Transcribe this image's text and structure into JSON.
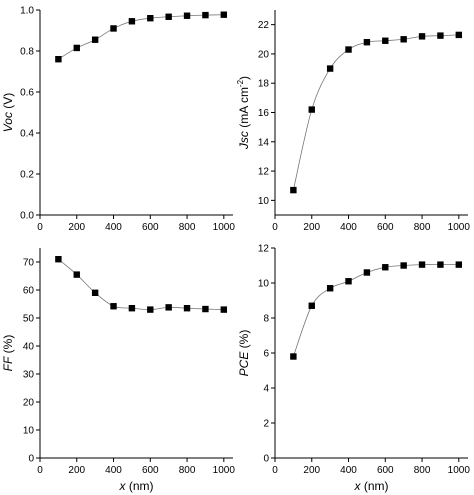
{
  "chart_data": [
    {
      "type": "scatter",
      "title": "",
      "xlabel": "",
      "ylabel": {
        "italic": "Voc",
        "plain": " (V)"
      },
      "xlim": [
        0,
        1050
      ],
      "ylim": [
        0.0,
        1.0
      ],
      "xticks": [
        0,
        200,
        400,
        600,
        800,
        1000
      ],
      "yticks": [
        0.0,
        0.2,
        0.4,
        0.6,
        0.8,
        1.0
      ],
      "ytick_labels": [
        "0.0",
        "0.2",
        "0.4",
        "0.6",
        "0.8",
        "1.0"
      ],
      "x": [
        100,
        200,
        300,
        400,
        500,
        600,
        700,
        800,
        900,
        1000
      ],
      "y": [
        0.76,
        0.815,
        0.855,
        0.91,
        0.945,
        0.96,
        0.967,
        0.972,
        0.975,
        0.977
      ],
      "fit_line": true,
      "grid": false
    },
    {
      "type": "scatter",
      "title": "",
      "xlabel": "",
      "ylabel": {
        "italic": "Jsc",
        "plain": " (mA cm",
        "sup": "-2",
        "close": ")"
      },
      "xlim": [
        0,
        1050
      ],
      "ylim": [
        9,
        23
      ],
      "xticks": [
        0,
        200,
        400,
        600,
        800,
        1000
      ],
      "yticks": [
        10,
        12,
        14,
        16,
        18,
        20,
        22
      ],
      "ytick_labels": [
        "10",
        "12",
        "14",
        "16",
        "18",
        "20",
        "22"
      ],
      "x": [
        100,
        200,
        300,
        400,
        500,
        600,
        700,
        800,
        900,
        1000
      ],
      "y": [
        10.7,
        16.2,
        19.0,
        20.3,
        20.8,
        20.9,
        21.0,
        21.2,
        21.25,
        21.3
      ],
      "fit_line": true,
      "grid": false
    },
    {
      "type": "scatter",
      "title": "",
      "xlabel": {
        "italic": "x",
        "plain": " (nm)"
      },
      "ylabel": {
        "italic": "FF",
        "plain": " (%)"
      },
      "xlim": [
        0,
        1050
      ],
      "ylim": [
        0,
        75
      ],
      "xticks": [
        0,
        200,
        400,
        600,
        800,
        1000
      ],
      "yticks": [
        0,
        10,
        20,
        30,
        40,
        50,
        60,
        70
      ],
      "ytick_labels": [
        "0",
        "10",
        "20",
        "30",
        "40",
        "50",
        "60",
        "70"
      ],
      "x": [
        100,
        200,
        300,
        400,
        500,
        600,
        700,
        800,
        900,
        1000
      ],
      "y": [
        71,
        65.5,
        59,
        54.2,
        53.5,
        53,
        53.8,
        53.5,
        53.2,
        53
      ],
      "fit_line": true,
      "grid": false
    },
    {
      "type": "scatter",
      "title": "",
      "xlabel": {
        "italic": "x",
        "plain": " (nm)"
      },
      "ylabel": {
        "italic": "PCE",
        "plain": " (%)"
      },
      "xlim": [
        0,
        1050
      ],
      "ylim": [
        0,
        12
      ],
      "xticks": [
        0,
        200,
        400,
        600,
        800,
        1000
      ],
      "yticks": [
        0,
        2,
        4,
        6,
        8,
        10,
        12
      ],
      "ytick_labels": [
        "0",
        "2",
        "4",
        "6",
        "8",
        "10",
        "12"
      ],
      "x": [
        100,
        200,
        300,
        400,
        500,
        600,
        700,
        800,
        900,
        1000
      ],
      "y": [
        5.8,
        8.7,
        9.7,
        10.1,
        10.6,
        10.9,
        11.0,
        11.05,
        11.05,
        11.05
      ],
      "fit_line": true,
      "grid": false
    }
  ]
}
